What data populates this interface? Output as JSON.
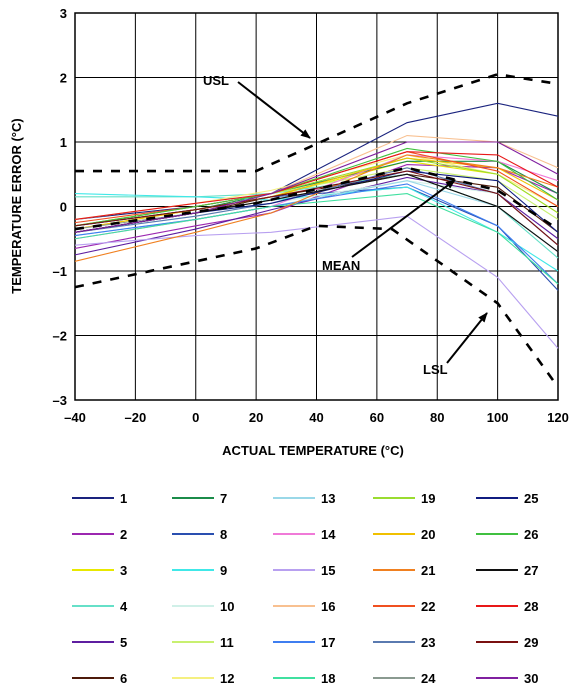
{
  "chart_data": {
    "type": "line",
    "xlabel": "ACTUAL TEMPERATURE (°C)",
    "ylabel": "TEMPERATURE ERROR (°C)",
    "xlim": [
      -40,
      120
    ],
    "ylim": [
      -3,
      3
    ],
    "xticks": [
      -40,
      -20,
      0,
      20,
      40,
      60,
      80,
      100,
      120
    ],
    "yticks": [
      3,
      2,
      1,
      0,
      -1,
      -2,
      -3
    ],
    "xtick_labels": [
      "–40",
      "–20",
      "0",
      "20",
      "40",
      "60",
      "80",
      "100",
      "120"
    ],
    "ytick_labels": [
      "3",
      "2",
      "1",
      "0",
      "–1",
      "–2",
      "–3"
    ],
    "grid": true,
    "legend_placement": "below",
    "x": [
      -40,
      0,
      25,
      70,
      100,
      120
    ],
    "series": [
      {
        "name": "1",
        "color": "#1a237e",
        "values": [
          -0.2,
          0.0,
          0.2,
          1.3,
          1.6,
          1.4
        ]
      },
      {
        "name": "2",
        "color": "#9c27b0",
        "values": [
          -0.65,
          -0.3,
          -0.1,
          0.65,
          0.6,
          0.2
        ]
      },
      {
        "name": "3",
        "color": "#e8e800",
        "values": [
          -0.35,
          -0.05,
          0.15,
          0.7,
          0.5,
          -0.1
        ]
      },
      {
        "name": "4",
        "color": "#66e0c8",
        "values": [
          0.15,
          0.15,
          0.2,
          0.5,
          0.0,
          -0.8
        ]
      },
      {
        "name": "5",
        "color": "#5e1ea0",
        "values": [
          -0.75,
          -0.35,
          -0.05,
          0.45,
          0.2,
          -0.5
        ]
      },
      {
        "name": "6",
        "color": "#4e1a0a",
        "values": [
          -0.4,
          -0.1,
          0.15,
          0.5,
          0.3,
          -0.4
        ]
      },
      {
        "name": "7",
        "color": "#1b8c4a",
        "values": [
          -0.3,
          -0.05,
          0.2,
          0.7,
          0.7,
          0.2
        ]
      },
      {
        "name": "8",
        "color": "#2a4fb0",
        "values": [
          -0.3,
          -0.05,
          0.15,
          0.3,
          -0.3,
          -1.3
        ]
      },
      {
        "name": "9",
        "color": "#40e8e8",
        "values": [
          0.2,
          0.15,
          0.1,
          0.3,
          -0.4,
          -1.0
        ]
      },
      {
        "name": "10",
        "color": "#d0f0e8",
        "values": [
          -0.4,
          -0.15,
          0.05,
          0.4,
          0.2,
          -0.6
        ]
      },
      {
        "name": "11",
        "color": "#c8f070",
        "values": [
          -0.3,
          0.0,
          0.2,
          0.6,
          0.4,
          -0.2
        ]
      },
      {
        "name": "12",
        "color": "#f5f080",
        "values": [
          -0.2,
          0.05,
          0.25,
          0.8,
          0.5,
          0.0
        ]
      },
      {
        "name": "13",
        "color": "#9ad8e8",
        "values": [
          -0.45,
          -0.2,
          0.0,
          0.4,
          0.0,
          -0.7
        ]
      },
      {
        "name": "14",
        "color": "#f07ad8",
        "values": [
          -0.5,
          -0.2,
          0.0,
          0.8,
          0.7,
          0.4
        ]
      },
      {
        "name": "15",
        "color": "#b8a0f0",
        "values": [
          -0.6,
          -0.45,
          -0.4,
          -0.15,
          -1.1,
          -2.2
        ]
      },
      {
        "name": "16",
        "color": "#f8c090",
        "values": [
          -0.4,
          -0.1,
          0.2,
          1.1,
          1.0,
          0.6
        ]
      },
      {
        "name": "17",
        "color": "#3f7ef0",
        "values": [
          -0.45,
          -0.2,
          0.0,
          0.35,
          -0.3,
          -1.2
        ]
      },
      {
        "name": "18",
        "color": "#40e0a0",
        "values": [
          -0.5,
          -0.2,
          0.0,
          0.2,
          -0.4,
          -1.2
        ]
      },
      {
        "name": "19",
        "color": "#9adc30",
        "values": [
          -0.3,
          0.0,
          0.2,
          0.75,
          0.5,
          -0.1
        ]
      },
      {
        "name": "20",
        "color": "#f0c000",
        "values": [
          -0.35,
          -0.05,
          0.15,
          0.75,
          0.6,
          0.1
        ]
      },
      {
        "name": "21",
        "color": "#f08020",
        "values": [
          -0.85,
          -0.4,
          -0.1,
          0.8,
          0.6,
          0.3
        ]
      },
      {
        "name": "22",
        "color": "#f05020",
        "values": [
          -0.25,
          0.0,
          0.2,
          0.85,
          0.55,
          0.0
        ]
      },
      {
        "name": "23",
        "color": "#5a7ab0",
        "values": [
          -0.4,
          -0.15,
          0.05,
          0.6,
          0.2,
          -0.6
        ]
      },
      {
        "name": "24",
        "color": "#8a9a90",
        "values": [
          -0.35,
          -0.1,
          0.1,
          0.5,
          0.0,
          -0.7
        ]
      },
      {
        "name": "25",
        "color": "#101c80",
        "values": [
          -0.4,
          -0.1,
          0.05,
          0.55,
          0.4,
          -0.4
        ]
      },
      {
        "name": "26",
        "color": "#40c040",
        "values": [
          -0.3,
          0.0,
          0.2,
          0.9,
          0.7,
          0.1
        ]
      },
      {
        "name": "27",
        "color": "#101010",
        "values": [
          -0.4,
          -0.1,
          0.1,
          0.5,
          0.0,
          -0.7
        ]
      },
      {
        "name": "28",
        "color": "#e81818",
        "values": [
          -0.2,
          0.05,
          0.2,
          0.85,
          0.8,
          0.3
        ]
      },
      {
        "name": "29",
        "color": "#7a1010",
        "values": [
          -0.3,
          -0.05,
          0.15,
          0.55,
          0.2,
          -0.6
        ]
      },
      {
        "name": "30",
        "color": "#8020a0",
        "values": [
          -0.4,
          -0.1,
          0.2,
          1.0,
          1.0,
          0.5
        ]
      }
    ],
    "limit_curves": [
      {
        "label": "USL",
        "x": [
          -40,
          20,
          70,
          100,
          120
        ],
        "values": [
          0.55,
          0.55,
          1.6,
          2.05,
          1.9
        ]
      },
      {
        "label": "MEAN",
        "x": [
          -40,
          20,
          70,
          100,
          120
        ],
        "values": [
          -0.35,
          0.05,
          0.6,
          0.25,
          -0.35
        ]
      },
      {
        "label": "LSL",
        "x": [
          -40,
          20,
          40,
          65,
          100,
          120
        ],
        "values": [
          -1.25,
          -0.65,
          -0.3,
          -0.35,
          -1.5,
          -2.8
        ]
      }
    ]
  }
}
